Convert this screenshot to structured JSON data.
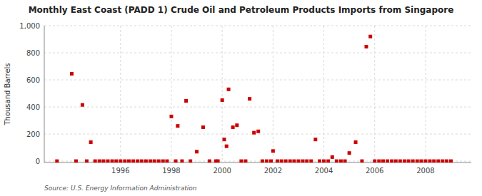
{
  "chart_data": {
    "type": "scatter",
    "title": "Monthly East Coast (PADD 1) Crude Oil and Petroleum Products Imports from Singapore",
    "ylabel": "Thousand Barrels",
    "source": "Source: U.S. Energy Information Administration",
    "color": "#cc0000",
    "marker": "square",
    "grid": true,
    "xlim": [
      1993.0,
      2009.8
    ],
    "ylim": [
      -10,
      1000
    ],
    "xticks": [
      1996,
      1998,
      2000,
      2002,
      2004,
      2006,
      2008
    ],
    "yticks": [
      0,
      200,
      400,
      600,
      800,
      {
        "value": 1000,
        "label": "1,000"
      }
    ],
    "x": [
      1994.08,
      1994.5,
      1994.83,
      1993.5,
      1994.25,
      1994.67,
      1995.0,
      1995.17,
      1995.33,
      1995.5,
      1995.67,
      1995.83,
      1996.0,
      1996.17,
      1996.33,
      1996.5,
      1996.67,
      1996.83,
      1997.0,
      1997.17,
      1997.33,
      1997.5,
      1997.67,
      1997.83,
      1998.0,
      1998.25,
      1998.58,
      1998.17,
      1998.42,
      1998.75,
      1999.0,
      1999.25,
      1999.5,
      1999.75,
      1999.83,
      2000.0,
      2000.08,
      2000.17,
      2000.25,
      2000.42,
      2000.58,
      2000.75,
      2000.92,
      2001.08,
      2001.25,
      2001.42,
      2001.58,
      2001.75,
      2001.92,
      2002.0,
      2002.17,
      2002.33,
      2002.5,
      2002.67,
      2002.83,
      2003.0,
      2003.17,
      2003.33,
      2003.5,
      2003.67,
      2003.83,
      2004.0,
      2004.17,
      2004.33,
      2004.5,
      2004.67,
      2004.83,
      2005.0,
      2005.25,
      2005.5,
      2005.67,
      2005.83,
      2006.0,
      2006.17,
      2006.33,
      2006.5,
      2006.67,
      2006.83,
      2007.0,
      2007.17,
      2007.33,
      2007.5,
      2007.67,
      2007.83,
      2008.0,
      2008.17,
      2008.33,
      2008.5,
      2008.67,
      2008.83,
      2009.0
    ],
    "values": [
      645,
      415,
      140,
      0,
      0,
      0,
      0,
      0,
      0,
      0,
      0,
      0,
      0,
      0,
      0,
      0,
      0,
      0,
      0,
      0,
      0,
      0,
      0,
      0,
      330,
      260,
      445,
      0,
      0,
      0,
      70,
      250,
      0,
      0,
      0,
      450,
      160,
      110,
      530,
      250,
      265,
      0,
      0,
      460,
      210,
      220,
      0,
      0,
      0,
      75,
      0,
      0,
      0,
      0,
      0,
      0,
      0,
      0,
      0,
      160,
      0,
      0,
      0,
      30,
      0,
      0,
      0,
      60,
      140,
      0,
      845,
      920,
      0,
      0,
      0,
      0,
      0,
      0,
      0,
      0,
      0,
      0,
      0,
      0,
      0,
      0,
      0,
      0,
      0,
      0,
      0
    ]
  }
}
